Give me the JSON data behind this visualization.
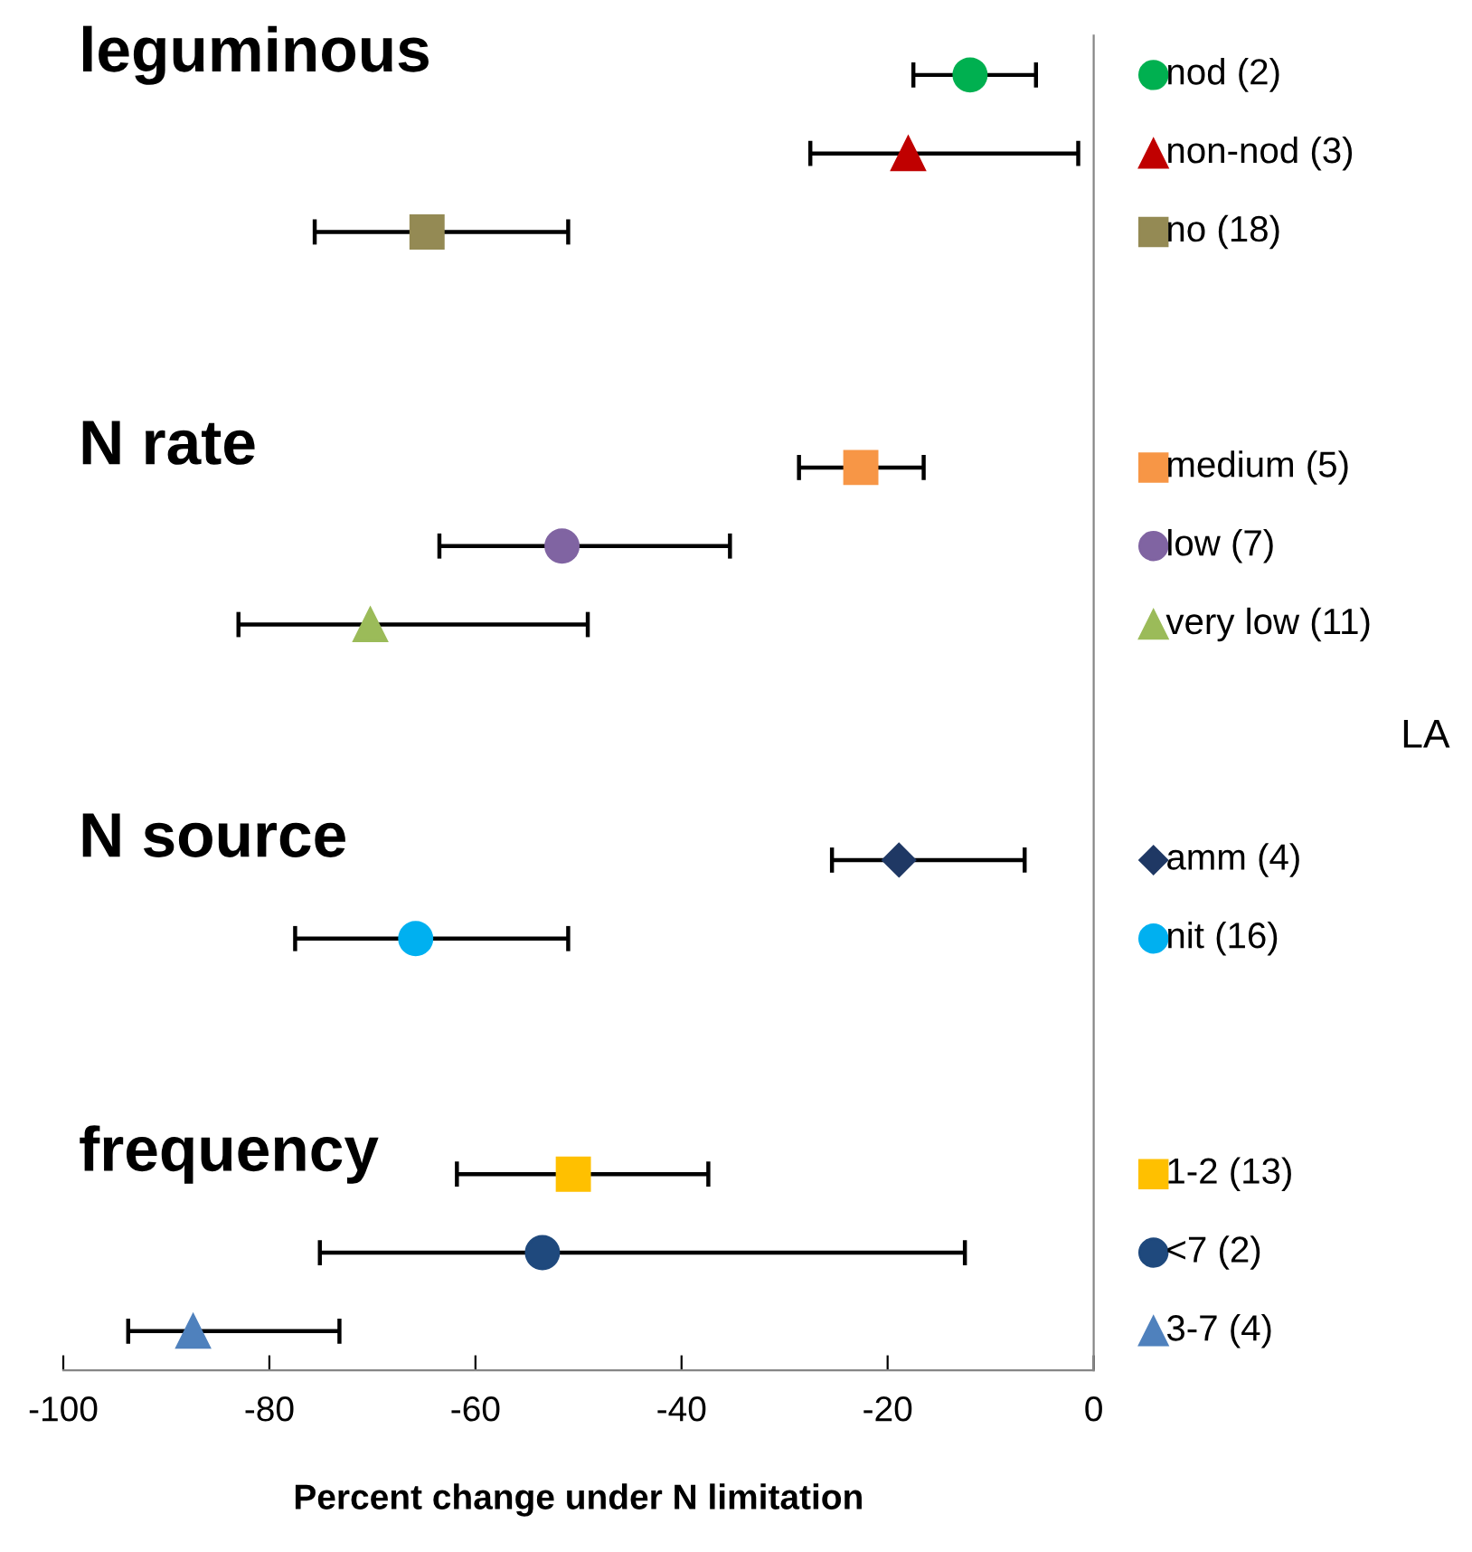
{
  "chart_data": {
    "type": "scatter",
    "orientation": "horizontal",
    "xlabel": "Percent change under N limitation",
    "categories": [
      null,
      null,
      null,
      null,
      null,
      null,
      null,
      null,
      null,
      null,
      null,
      null,
      null,
      null,
      null,
      null,
      null
    ],
    "xlim": [
      -100,
      0
    ],
    "xticks": [
      {
        "value": -100,
        "label": "-100"
      },
      {
        "value": -80,
        "label": "-80"
      },
      {
        "value": -60,
        "label": "-60"
      },
      {
        "value": -40,
        "label": "-40"
      },
      {
        "value": -20,
        "label": "-20"
      },
      0
    ],
    "grid": false,
    "legend": "right",
    "tick_labels": "x",
    "annotations": [
      "leguminous",
      "N rate",
      "N source",
      "frequency",
      "LA"
    ],
    "series": [
      {
        "name": "nod (2)",
        "color": "#00b050",
        "marker": "circle",
        "values": [
          -12,
          null,
          null,
          null,
          null,
          null,
          null,
          null,
          null,
          null,
          null,
          null,
          null,
          null,
          null,
          null,
          null
        ],
        "errors": [
          [
            -17.5,
            -5.6
          ],
          null,
          null,
          null,
          null,
          null,
          null,
          null,
          null,
          null,
          null,
          null,
          null,
          null,
          null,
          null,
          null
        ]
      },
      {
        "name": "non-nod (3)",
        "color": "#c00000",
        "marker": "triangle",
        "values": [
          null,
          -18,
          null,
          null,
          null,
          null,
          null,
          null,
          null,
          null,
          null,
          null,
          null,
          null,
          null,
          null,
          null
        ],
        "errors": [
          null,
          [
            -27.5,
            -1.5
          ],
          null,
          null,
          null,
          null,
          null,
          null,
          null,
          null,
          null,
          null,
          null,
          null,
          null,
          null,
          null
        ]
      },
      {
        "name": "no (18)",
        "color": "#948a54",
        "marker": "square",
        "values": [
          null,
          null,
          -64.7,
          null,
          null,
          null,
          null,
          null,
          null,
          null,
          null,
          null,
          null,
          null,
          null,
          null,
          null
        ],
        "errors": [
          null,
          null,
          [
            -75.6,
            -51
          ],
          null,
          null,
          null,
          null,
          null,
          null,
          null,
          null,
          null,
          null,
          null,
          null,
          null,
          null
        ]
      },
      {
        "name": "medium (5)",
        "color": "#f79646",
        "marker": "square",
        "values": [
          null,
          null,
          null,
          null,
          null,
          -22.6,
          null,
          null,
          null,
          null,
          null,
          null,
          null,
          null,
          null,
          null,
          null
        ],
        "errors": [
          null,
          null,
          null,
          null,
          null,
          [
            -28.6,
            -16.5
          ],
          null,
          null,
          null,
          null,
          null,
          null,
          null,
          null,
          null,
          null,
          null
        ]
      },
      {
        "name": "low (7)",
        "color": "#8064a2",
        "marker": "circle",
        "values": [
          null,
          null,
          null,
          null,
          null,
          null,
          -51.6,
          null,
          null,
          null,
          null,
          null,
          null,
          null,
          null,
          null,
          null
        ],
        "errors": [
          null,
          null,
          null,
          null,
          null,
          null,
          [
            -63.5,
            -35.3
          ],
          null,
          null,
          null,
          null,
          null,
          null,
          null,
          null,
          null,
          null
        ]
      },
      {
        "name": "very low (11)",
        "color": "#9bbb59",
        "marker": "triangle",
        "values": [
          null,
          null,
          null,
          null,
          null,
          null,
          null,
          -70.2,
          null,
          null,
          null,
          null,
          null,
          null,
          null,
          null,
          null
        ],
        "errors": [
          null,
          null,
          null,
          null,
          null,
          null,
          null,
          [
            -83,
            -49.1
          ],
          null,
          null,
          null,
          null,
          null,
          null,
          null,
          null,
          null
        ]
      },
      {
        "name": "amm (4)",
        "color": "#1f3864",
        "marker": "diamond",
        "values": [
          null,
          null,
          null,
          null,
          null,
          null,
          null,
          null,
          null,
          null,
          -18.9,
          null,
          null,
          null,
          null,
          null,
          null
        ],
        "errors": [
          null,
          null,
          null,
          null,
          null,
          null,
          null,
          null,
          null,
          null,
          [
            -25.4,
            -6.7
          ],
          null,
          null,
          null,
          null,
          null,
          null
        ]
      },
      {
        "name": "nit (16)",
        "color": "#00b0f0",
        "marker": "circle",
        "values": [
          null,
          null,
          null,
          null,
          null,
          null,
          null,
          null,
          null,
          null,
          null,
          -65.8,
          null,
          null,
          null,
          null,
          null
        ],
        "errors": [
          null,
          null,
          null,
          null,
          null,
          null,
          null,
          null,
          null,
          null,
          null,
          [
            -77.5,
            -51
          ],
          null,
          null,
          null,
          null,
          null
        ]
      },
      {
        "name": "1-2 (13)",
        "color": "#ffc000",
        "marker": "square",
        "values": [
          null,
          null,
          null,
          null,
          null,
          null,
          null,
          null,
          null,
          null,
          null,
          null,
          null,
          null,
          -50.5,
          null,
          null
        ],
        "errors": [
          null,
          null,
          null,
          null,
          null,
          null,
          null,
          null,
          null,
          null,
          null,
          null,
          null,
          null,
          [
            -61.8,
            -37.4
          ],
          null,
          null
        ]
      },
      {
        "name": "<7 (2)",
        "color": "#1f497d",
        "marker": "circle",
        "values": [
          null,
          null,
          null,
          null,
          null,
          null,
          null,
          null,
          null,
          null,
          null,
          null,
          null,
          null,
          null,
          -53.5,
          null
        ],
        "errors": [
          null,
          null,
          null,
          null,
          null,
          null,
          null,
          null,
          null,
          null,
          null,
          null,
          null,
          null,
          null,
          [
            -75.1,
            -12.5
          ],
          null
        ]
      },
      {
        "name": "3-7 (4)",
        "color": "#4f81bd",
        "marker": "triangle",
        "values": [
          null,
          null,
          null,
          null,
          null,
          null,
          null,
          null,
          null,
          null,
          null,
          null,
          null,
          null,
          null,
          null,
          -87.4
        ],
        "errors": [
          null,
          null,
          null,
          null,
          null,
          null,
          null,
          null,
          null,
          null,
          null,
          null,
          null,
          null,
          null,
          null,
          [
            -93.7,
            -73.2
          ]
        ]
      }
    ]
  }
}
